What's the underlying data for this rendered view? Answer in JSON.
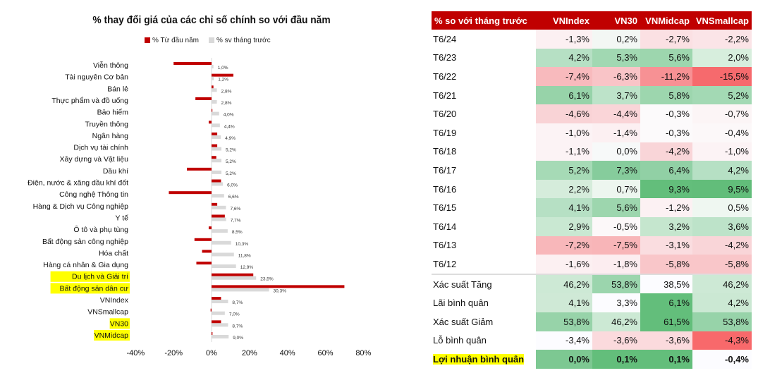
{
  "chart_data": {
    "type": "bar",
    "orientation": "horizontal",
    "title": "% thay đổi giá của các chỉ số chính so với đầu năm",
    "legend": [
      "% Từ đầu năm",
      "% sv tháng trước"
    ],
    "legend_position": "top",
    "xlim": [
      -40,
      80
    ],
    "xticks": [
      "-40%",
      "-20%",
      "0%",
      "20%",
      "40%",
      "60%",
      "80%"
    ],
    "xtick_values": [
      -40,
      -20,
      0,
      20,
      40,
      60,
      80
    ],
    "categories": [
      "Viễn thông",
      "Tài nguyên Cơ bản",
      "Bán lẻ",
      "Thực phẩm và đồ uống",
      "Bảo hiểm",
      "Truyền thông",
      "Ngân hàng",
      "Dịch vụ tài chính",
      "Xây dựng và Vật liệu",
      "Dầu khí",
      "Điện, nước & xăng dầu khí đốt",
      "Công nghệ Thông tin",
      "Hàng & Dịch vụ Công nghiệp",
      "Y tế",
      "Ô tô và phụ tùng",
      "Bất động sản công nghiệp",
      "Hóa chất",
      "Hàng cá nhân & Gia dụng",
      "Du lịch và Giải trí",
      "Bất động sản dân cư",
      "VNIndex",
      "VNSmallcap",
      "VN30",
      "VNMidcap"
    ],
    "highlighted": [
      "Du lịch và Giải trí",
      "Bất động sản dân cư",
      "VN30",
      "VNMidcap"
    ],
    "series": [
      {
        "name": "% Từ đầu năm",
        "color": "#c00000",
        "values": [
          -20,
          11.5,
          1,
          -8.5,
          0.3,
          -1.5,
          3,
          3,
          2.5,
          -13,
          5,
          -22.5,
          3,
          7,
          -1.5,
          -9,
          -5,
          -8,
          22,
          70,
          5,
          -0.5,
          5,
          0.5
        ]
      },
      {
        "name": "% sv tháng trước",
        "color": "#d9d9d9",
        "values": [
          1.0,
          1.2,
          2.8,
          2.8,
          4.0,
          4.4,
          4.9,
          5.2,
          5.2,
          5.2,
          6.0,
          6.6,
          7.6,
          7.7,
          8.5,
          10.3,
          11.8,
          12.9,
          23.5,
          30.3,
          8.7,
          7.0,
          8.7,
          9.0
        ],
        "labels": [
          "1,0%",
          "1,2%",
          "2,8%",
          "2,8%",
          "4,0%",
          "4,4%",
          "4,9%",
          "5,2%",
          "5,2%",
          "5,2%",
          "6,0%",
          "6,6%",
          "7,6%",
          "7,7%",
          "8,5%",
          "10,3%",
          "11,8%",
          "12,9%",
          "23,5%",
          "30,3%",
          "8,7%",
          "7,0%",
          "8,7%",
          "9,0%"
        ]
      }
    ]
  },
  "table": {
    "headers": [
      "% so với tháng trước",
      "VNIndex",
      "VN30",
      "VNMidcap",
      "VNSmallcap"
    ],
    "rows": [
      {
        "label": "T6/24",
        "values": [
          "-1,3%",
          "0,2%",
          "-2,7%",
          "-2,2%"
        ],
        "colors": [
          "#fcf0f2",
          "#f3f7f4",
          "#fbe0e3",
          "#fbe4e7"
        ]
      },
      {
        "label": "T6/23",
        "values": [
          "4,2%",
          "5,3%",
          "5,6%",
          "2,0%"
        ],
        "colors": [
          "#b6e0c4",
          "#a1d8b2",
          "#9dd6ae",
          "#d7eedd"
        ]
      },
      {
        "label": "T6/22",
        "values": [
          "-7,4%",
          "-6,3%",
          "-11,2%",
          "-15,5%"
        ],
        "colors": [
          "#f8babd",
          "#f9c4c7",
          "#f79194",
          "#f66a6d"
        ]
      },
      {
        "label": "T6/21",
        "values": [
          "6,1%",
          "3,7%",
          "5,8%",
          "5,2%"
        ],
        "colors": [
          "#97d3a9",
          "#bde3c9",
          "#9dd6ae",
          "#a3d9b4"
        ]
      },
      {
        "label": "T6/20",
        "values": [
          "-4,6%",
          "-4,4%",
          "-0,3%",
          "-0,7%"
        ],
        "colors": [
          "#f9d3d6",
          "#fad5d8",
          "#fcfafb",
          "#fcf5f6"
        ]
      },
      {
        "label": "T6/19",
        "values": [
          "-1,0%",
          "-1,4%",
          "-0,3%",
          "-0,4%"
        ],
        "colors": [
          "#fcf3f5",
          "#fcf0f2",
          "#fcfafb",
          "#fcf8f9"
        ]
      },
      {
        "label": "T6/18",
        "values": [
          "-1,1%",
          "0,0%",
          "-4,2%",
          "-1,0%"
        ],
        "colors": [
          "#fcf3f5",
          "#f7f9f9",
          "#f9d5d8",
          "#fcf3f5"
        ]
      },
      {
        "label": "T6/17",
        "values": [
          "5,2%",
          "7,3%",
          "6,4%",
          "4,2%"
        ],
        "colors": [
          "#a6dab6",
          "#86cc9c",
          "#91d0a5",
          "#b6e0c4"
        ]
      },
      {
        "label": "T6/16",
        "values": [
          "2,2%",
          "0,7%",
          "9,3%",
          "9,5%"
        ],
        "colors": [
          "#d5ecdb",
          "#edf6ef",
          "#63be7b",
          "#62bd7a"
        ]
      },
      {
        "label": "T6/15",
        "values": [
          "4,1%",
          "5,6%",
          "-1,2%",
          "0,5%"
        ],
        "colors": [
          "#b6e0c4",
          "#9dd6ae",
          "#fcf1f3",
          "#eff7f1"
        ]
      },
      {
        "label": "T6/14",
        "values": [
          "2,9%",
          "-0,5%",
          "3,2%",
          "3,6%"
        ],
        "colors": [
          "#c9e8d2",
          "#fcf8f9",
          "#c5e6ce",
          "#bde3c9"
        ]
      },
      {
        "label": "T6/13",
        "values": [
          "-7,2%",
          "-7,5%",
          "-3,1%",
          "-4,2%"
        ],
        "colors": [
          "#f8b7ba",
          "#f8b5b8",
          "#fadde0",
          "#f9d5d8"
        ]
      },
      {
        "label": "T6/12",
        "values": [
          "-1,6%",
          "-1,8%",
          "-5,8%",
          "-5,8%"
        ],
        "colors": [
          "#fcf0f2",
          "#fcedf0",
          "#f9c6c9",
          "#f9c6c9"
        ]
      }
    ],
    "summary": [
      {
        "label": "Xác suất Tăng",
        "values": [
          "46,2%",
          "53,8%",
          "38,5%",
          "46,2%"
        ],
        "colors": [
          "#cde9d5",
          "#9bd5ad",
          "#fcfcff",
          "#cde9d5"
        ]
      },
      {
        "label": "Lãi bình quân",
        "values": [
          "4,1%",
          "3,3%",
          "6,1%",
          "4,2%"
        ],
        "colors": [
          "#cfe9d6",
          "#fcfcff",
          "#63be7b",
          "#cbe8d3"
        ]
      },
      {
        "label": "Xác suất Giảm",
        "values": [
          "53,8%",
          "46,2%",
          "61,5%",
          "53,8%"
        ],
        "colors": [
          "#97d3a9",
          "#cce9d4",
          "#63be7b",
          "#97d3a9"
        ]
      },
      {
        "label": "Lỗ bình quân",
        "values": [
          "-3,4%",
          "-3,6%",
          "-3,6%",
          "-4,3%"
        ],
        "colors": [
          "#fcfcff",
          "#fbdadd",
          "#fbdadd",
          "#f8696b"
        ]
      },
      {
        "label": "Lợi nhuận bình quân",
        "values": [
          "0,0%",
          "0,1%",
          "0,1%",
          "-0,4%"
        ],
        "colors": [
          "#7dc892",
          "#63be7b",
          "#63be7b",
          "#fcfcff"
        ]
      }
    ]
  }
}
